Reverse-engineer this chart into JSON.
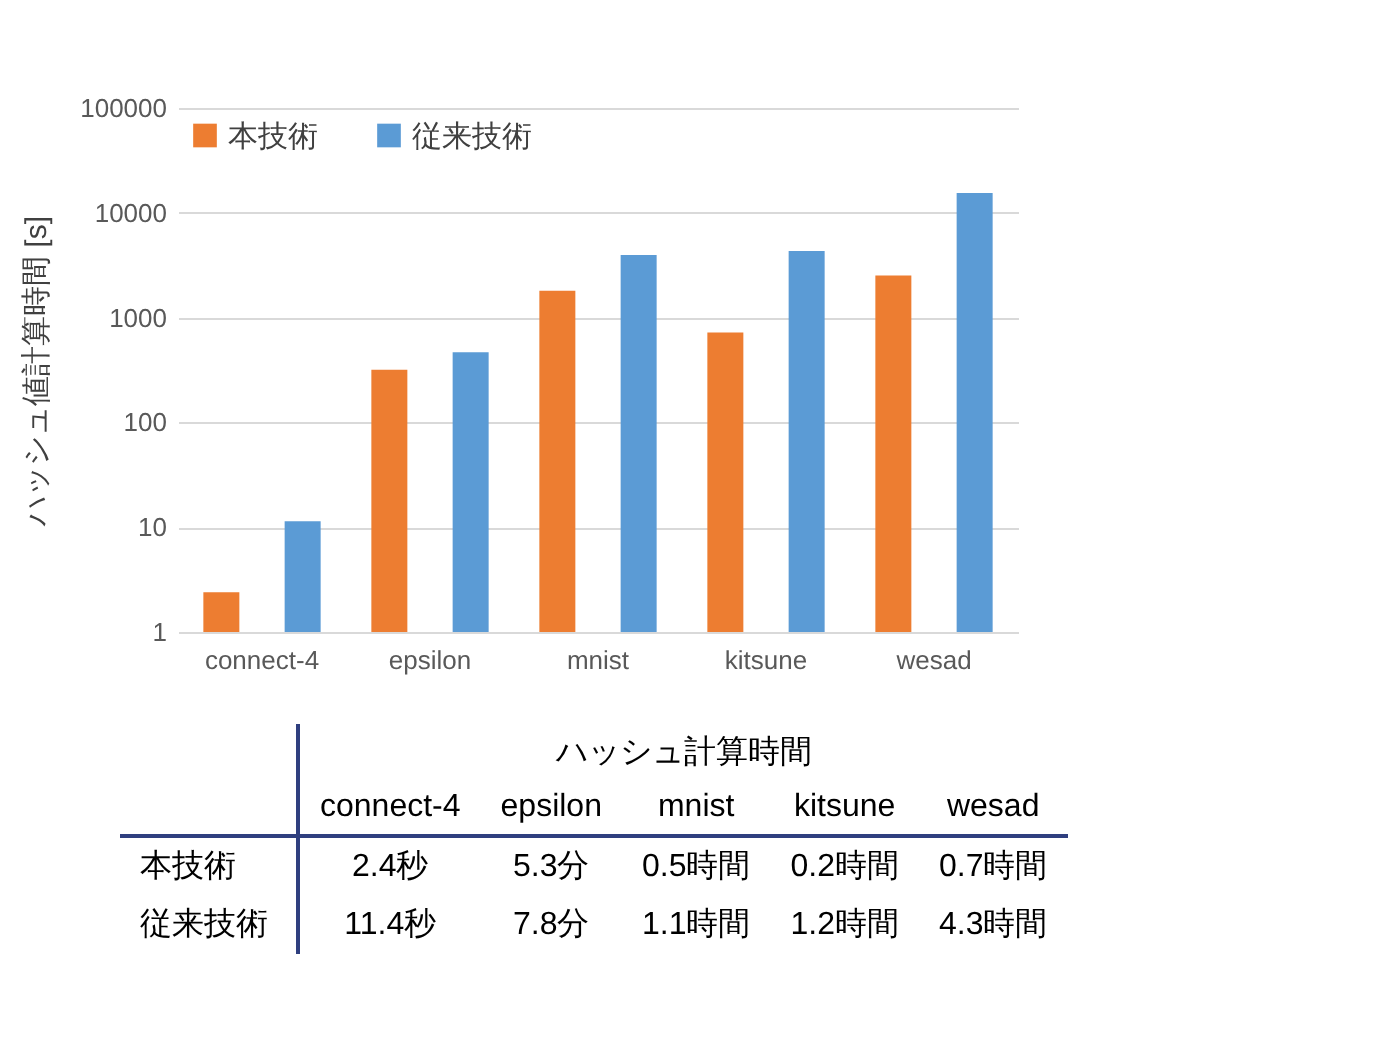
{
  "chart_data": [
    {
      "type": "bar",
      "ylabel": "ハッシュ値計算時間 [s]",
      "categories": [
        "connect-4",
        "epsilon",
        "mnist",
        "kitsune",
        "wesad"
      ],
      "series": [
        {
          "name": "本技術",
          "color": "#ed7d31",
          "values": [
            2.4,
            318,
            1800,
            720,
            2520
          ]
        },
        {
          "name": "従来技術",
          "color": "#5b9bd5",
          "values": [
            11.4,
            468,
            3960,
            4320,
            15480
          ]
        }
      ],
      "log": "y",
      "ylim": [
        1,
        100000
      ],
      "yticks": [
        1,
        10,
        100,
        1000,
        10000,
        100000
      ],
      "grid": "y",
      "legend": "top left"
    },
    {
      "type": "other",
      "title": "ハッシュ計算時間",
      "categories": [
        "connect-4",
        "epsilon",
        "mnist",
        "kitsune",
        "wesad"
      ],
      "y_categories": [
        "本技術",
        "従来技術"
      ],
      "cell_labels": [
        [
          "2.4秒",
          "5.3分",
          "0.5時間",
          "0.2時間",
          "0.7時間"
        ],
        [
          "11.4秒",
          "7.8分",
          "1.1時間",
          "1.2時間",
          "4.3時間"
        ]
      ]
    }
  ]
}
